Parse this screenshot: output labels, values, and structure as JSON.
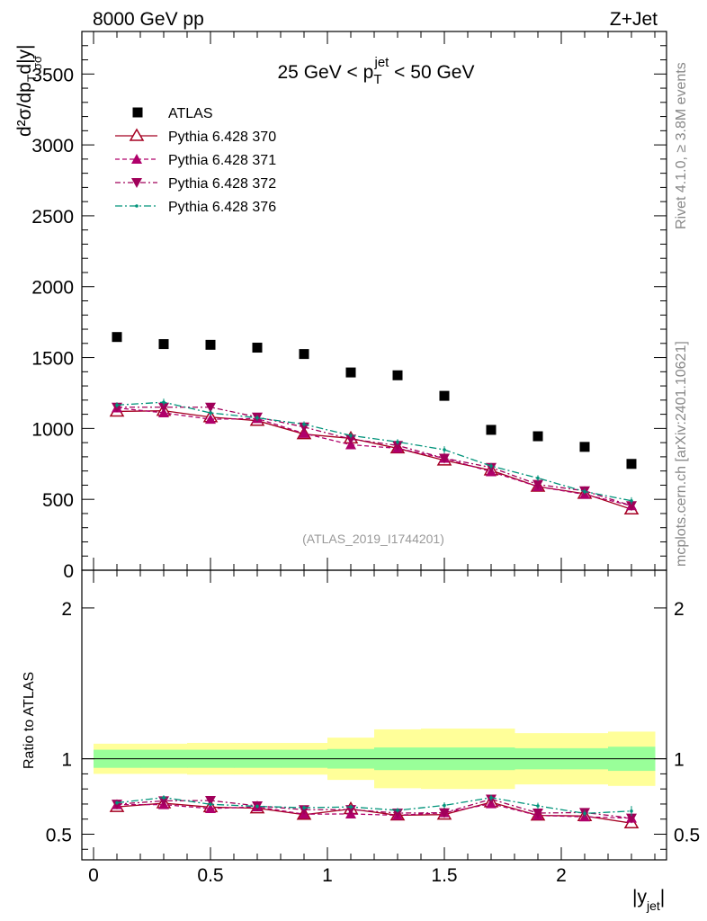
{
  "header": {
    "left": "8000 GeV pp",
    "right": "Z+Jet"
  },
  "side_text": {
    "rivet": "Rivet 4.1.0, ≥ 3.8M events",
    "mcplots": "mcplots.cern.ch [arXiv:2401.10621]"
  },
  "chart_data": {
    "type": "scatter",
    "title": {
      "prefix": "25 GeV < p",
      "sup": "jet",
      "sub": "T",
      "suffix": " < 50 GeV"
    },
    "analysis_label": "(ATLAS_2019_I1744201)",
    "ylabel": {
      "main": "d²σ/dp",
      "sub_t": "T",
      "mid": "d|y|",
      "overlap": "σσ"
    },
    "ratio_ylabel": "Ratio to ATLAS",
    "xlabel": {
      "main": "|y",
      "sub": "jet",
      "close": "|"
    },
    "xlim": [
      -0.05,
      2.45
    ],
    "ylim_main": [
      0,
      3800
    ],
    "ylim_ratio": [
      0.33,
      2.25
    ],
    "x_ticks": [
      "0",
      "0.5",
      "1",
      "1.5",
      "2"
    ],
    "y_ticks_main": [
      "0",
      "500",
      "1000",
      "1500",
      "2000",
      "2500",
      "3000",
      "3500"
    ],
    "y_ticks_ratio": [
      "0.5",
      "1",
      "2"
    ],
    "x": [
      0.1,
      0.3,
      0.5,
      0.7,
      0.9,
      1.1,
      1.3,
      1.5,
      1.7,
      1.9,
      2.1,
      2.3
    ],
    "bin_edges": [
      0.0,
      0.2,
      0.4,
      0.6,
      0.8,
      1.0,
      1.2,
      1.4,
      1.6,
      1.8,
      2.0,
      2.2,
      2.4
    ],
    "data": {
      "name": "ATLAS",
      "color": "#000000",
      "values": [
        1645,
        1595,
        1590,
        1570,
        1525,
        1395,
        1375,
        1230,
        990,
        945,
        870,
        750
      ],
      "stat_band_rel": [
        0.06,
        0.06,
        0.06,
        0.06,
        0.06,
        0.065,
        0.075,
        0.075,
        0.075,
        0.07,
        0.07,
        0.08
      ],
      "total_band_rel": [
        0.1,
        0.1,
        0.105,
        0.105,
        0.105,
        0.14,
        0.195,
        0.2,
        0.2,
        0.17,
        0.17,
        0.18
      ]
    },
    "series": [
      {
        "name": "Pythia 6.428 370",
        "color": "#a50021",
        "marker": "triangle-open",
        "dash": "none",
        "values": [
          1120,
          1125,
          1080,
          1055,
          960,
          930,
          860,
          775,
          705,
          590,
          540,
          430
        ],
        "errors": [
          15,
          20,
          15,
          15,
          15,
          15,
          15,
          15,
          15,
          15,
          15,
          15
        ]
      },
      {
        "name": "Pythia 6.428 371",
        "color": "#b0006b",
        "marker": "triangle-up",
        "dash": "5,3",
        "values": [
          1145,
          1110,
          1065,
          1070,
          965,
          885,
          860,
          790,
          695,
          590,
          535,
          455
        ],
        "errors": [
          15,
          20,
          15,
          15,
          15,
          15,
          15,
          15,
          15,
          15,
          15,
          15
        ]
      },
      {
        "name": "Pythia 6.428 372",
        "color": "#a0005a",
        "marker": "triangle-down",
        "dash": "6,3,2,3",
        "values": [
          1150,
          1150,
          1150,
          1080,
          1010,
          925,
          880,
          790,
          725,
          605,
          560,
          455
        ],
        "errors": [
          15,
          20,
          15,
          15,
          15,
          15,
          15,
          15,
          15,
          15,
          15,
          15
        ]
      },
      {
        "name": "Pythia 6.428 376",
        "color": "#00937a",
        "marker": "dot",
        "dash": "8,3,2,3",
        "values": [
          1165,
          1185,
          1110,
          1075,
          1030,
          950,
          905,
          850,
          735,
          650,
          555,
          490
        ],
        "errors": [
          20,
          25,
          20,
          20,
          20,
          20,
          20,
          25,
          20,
          20,
          20,
          25
        ]
      }
    ],
    "legend_position": "top-left"
  }
}
